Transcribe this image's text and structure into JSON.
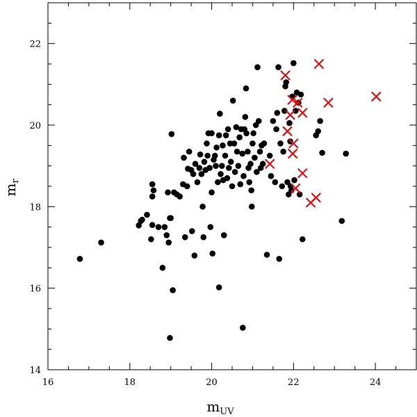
{
  "chart_data": {
    "type": "scatter",
    "xlabel": "m",
    "xlabel_sub": "UV",
    "ylabel": "m",
    "ylabel_sub": "r",
    "xlim": [
      16,
      25
    ],
    "ylim": [
      14,
      23
    ],
    "xticks": [
      "16",
      "18",
      "20",
      "22",
      "24"
    ],
    "yticks": [
      "14",
      "16",
      "18",
      "20",
      "22"
    ],
    "grid": false,
    "legend": "none",
    "series": [
      {
        "marker": "circle",
        "color": "#000000",
        "points": [
          [
            16.78,
            16.72
          ],
          [
            17.3,
            17.12
          ],
          [
            18.22,
            17.54
          ],
          [
            18.27,
            17.65
          ],
          [
            18.3,
            17.68
          ],
          [
            18.42,
            17.8
          ],
          [
            18.52,
            17.2
          ],
          [
            18.55,
            17.55
          ],
          [
            18.55,
            18.25
          ],
          [
            18.58,
            18.4
          ],
          [
            18.55,
            18.55
          ],
          [
            18.7,
            17.5
          ],
          [
            18.85,
            17.5
          ],
          [
            18.8,
            16.5
          ],
          [
            18.9,
            17.3
          ],
          [
            18.93,
            18.35
          ],
          [
            18.95,
            17.12
          ],
          [
            18.98,
            17.72
          ],
          [
            19.0,
            17.72
          ],
          [
            18.98,
            14.78
          ],
          [
            19.02,
            19.78
          ],
          [
            19.08,
            18.35
          ],
          [
            19.05,
            15.95
          ],
          [
            19.15,
            18.3
          ],
          [
            19.22,
            18.25
          ],
          [
            19.3,
            18.55
          ],
          [
            19.35,
            17.25
          ],
          [
            19.4,
            18.5
          ],
          [
            19.42,
            18.93
          ],
          [
            19.45,
            19.35
          ],
          [
            19.32,
            19.2
          ],
          [
            19.5,
            18.9
          ],
          [
            19.52,
            17.4
          ],
          [
            19.55,
            18.8
          ],
          [
            19.58,
            16.8
          ],
          [
            19.6,
            19.05
          ],
          [
            19.65,
            18.6
          ],
          [
            19.7,
            18.95
          ],
          [
            19.72,
            19.28
          ],
          [
            19.75,
            18.8
          ],
          [
            19.78,
            18.0
          ],
          [
            19.8,
            17.25
          ],
          [
            19.82,
            19.1
          ],
          [
            19.85,
            18.9
          ],
          [
            19.88,
            19.55
          ],
          [
            19.9,
            19.25
          ],
          [
            19.92,
            19.8
          ],
          [
            19.95,
            18.95
          ],
          [
            19.97,
            17.5
          ],
          [
            20.0,
            19.8
          ],
          [
            20.0,
            18.35
          ],
          [
            20.02,
            16.85
          ],
          [
            20.05,
            19.15
          ],
          [
            20.08,
            19.25
          ],
          [
            20.1,
            19.0
          ],
          [
            20.12,
            19.45
          ],
          [
            20.15,
            18.6
          ],
          [
            20.18,
            19.75
          ],
          [
            20.18,
            16.02
          ],
          [
            20.2,
            20.28
          ],
          [
            20.22,
            18.8
          ],
          [
            20.25,
            19.0
          ],
          [
            20.27,
            19.5
          ],
          [
            20.28,
            18.65
          ],
          [
            20.3,
            17.3
          ],
          [
            20.33,
            19.25
          ],
          [
            20.35,
            19.75
          ],
          [
            20.38,
            18.7
          ],
          [
            20.4,
            19.9
          ],
          [
            20.42,
            18.95
          ],
          [
            20.45,
            19.55
          ],
          [
            20.47,
            19.1
          ],
          [
            20.5,
            18.5
          ],
          [
            20.52,
            20.6
          ],
          [
            20.55,
            19.55
          ],
          [
            20.57,
            18.85
          ],
          [
            20.6,
            19.95
          ],
          [
            20.62,
            19.35
          ],
          [
            20.65,
            19.0
          ],
          [
            20.68,
            19.7
          ],
          [
            20.7,
            18.55
          ],
          [
            20.72,
            19.9
          ],
          [
            20.75,
            19.3
          ],
          [
            20.76,
            15.03
          ],
          [
            20.78,
            18.75
          ],
          [
            20.8,
            19.9
          ],
          [
            20.82,
            20.2
          ],
          [
            20.84,
            20.9
          ],
          [
            20.85,
            19.8
          ],
          [
            20.88,
            19.35
          ],
          [
            20.9,
            18.95
          ],
          [
            20.92,
            18.6
          ],
          [
            20.95,
            19.05
          ],
          [
            20.97,
            18.4
          ],
          [
            20.98,
            18.0
          ],
          [
            21.0,
            19.55
          ],
          [
            21.02,
            19.8
          ],
          [
            21.05,
            19.2
          ],
          [
            21.08,
            20.0
          ],
          [
            21.1,
            18.85
          ],
          [
            21.12,
            21.42
          ],
          [
            21.15,
            20.1
          ],
          [
            21.18,
            19.35
          ],
          [
            21.2,
            18.95
          ],
          [
            21.22,
            19.5
          ],
          [
            21.25,
            19.05
          ],
          [
            21.28,
            19.55
          ],
          [
            21.35,
            16.82
          ],
          [
            21.42,
            19.25
          ],
          [
            21.45,
            18.75
          ],
          [
            21.5,
            20.1
          ],
          [
            21.55,
            18.6
          ],
          [
            21.58,
            19.9
          ],
          [
            21.6,
            20.3
          ],
          [
            21.63,
            21.42
          ],
          [
            21.65,
            16.72
          ],
          [
            21.68,
            19.55
          ],
          [
            21.72,
            18.5
          ],
          [
            21.75,
            19.35
          ],
          [
            21.78,
            20.35
          ],
          [
            21.8,
            20.95
          ],
          [
            21.82,
            21.05
          ],
          [
            21.85,
            18.6
          ],
          [
            21.88,
            18.3
          ],
          [
            21.9,
            20.05
          ],
          [
            21.92,
            19.6
          ],
          [
            21.93,
            18.5
          ],
          [
            21.95,
            18.4
          ],
          [
            21.97,
            20.7
          ],
          [
            22.0,
            21.52
          ],
          [
            22.02,
            18.65
          ],
          [
            22.05,
            20.35
          ],
          [
            22.08,
            20.8
          ],
          [
            22.12,
            20.55
          ],
          [
            22.15,
            18.3
          ],
          [
            22.18,
            20.75
          ],
          [
            22.22,
            17.2
          ],
          [
            22.55,
            19.75
          ],
          [
            22.6,
            19.85
          ],
          [
            22.65,
            20.1
          ],
          [
            22.7,
            19.32
          ],
          [
            23.18,
            17.65
          ],
          [
            23.28,
            19.3
          ]
        ]
      },
      {
        "marker": "cross",
        "color": "#e01010",
        "points": [
          [
            21.8,
            21.22
          ],
          [
            22.62,
            21.5
          ],
          [
            21.97,
            20.62
          ],
          [
            22.1,
            20.55
          ],
          [
            22.85,
            20.55
          ],
          [
            24.02,
            20.7
          ],
          [
            22.22,
            20.3
          ],
          [
            21.92,
            20.25
          ],
          [
            21.85,
            19.85
          ],
          [
            22.0,
            19.55
          ],
          [
            21.98,
            19.3
          ],
          [
            21.42,
            19.05
          ],
          [
            22.22,
            18.82
          ],
          [
            22.05,
            18.45
          ],
          [
            22.55,
            18.22
          ],
          [
            22.42,
            18.1
          ]
        ]
      }
    ]
  }
}
